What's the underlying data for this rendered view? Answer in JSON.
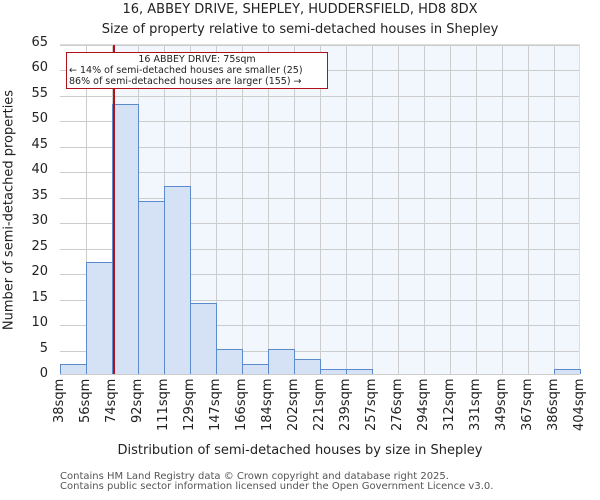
{
  "title": "16, ABBEY DRIVE, SHEPLEY, HUDDERSFIELD, HD8 8DX",
  "subtitle": "Size of property relative to semi-detached houses in Shepley",
  "annotation": {
    "line1": "16 ABBEY DRIVE: 75sqm",
    "line2": "← 14% of semi-detached houses are smaller (25)",
    "line3": "86% of semi-detached houses are larger (155) →"
  },
  "xlabel": "Distribution of semi-detached houses by size in Shepley",
  "ylabel": "Number of semi-detached properties",
  "footer": {
    "line1": "Contains HM Land Registry data © Crown copyright and database right 2025.",
    "line2": "Contains public sector information licensed under the Open Government Licence v3.0."
  },
  "colors": {
    "bar_fill": "#d5e1f4",
    "bar_edge": "#5b8bcc",
    "marker": "#b0101a",
    "shade": "#f2f6fd",
    "grid": "#cccccc"
  },
  "chart_data": {
    "type": "bar",
    "title": "16, ABBEY DRIVE, SHEPLEY, HUDDERSFIELD, HD8 8DX",
    "subtitle": "Size of property relative to semi-detached houses in Shepley",
    "xlabel": "Distribution of semi-detached houses by size in Shepley",
    "ylabel": "Number of semi-detached properties",
    "categories": [
      "38sqm",
      "56sqm",
      "74sqm",
      "92sqm",
      "111sqm",
      "129sqm",
      "147sqm",
      "166sqm",
      "184sqm",
      "202sqm",
      "221sqm",
      "239sqm",
      "257sqm",
      "276sqm",
      "294sqm",
      "312sqm",
      "331sqm",
      "349sqm",
      "367sqm",
      "386sqm",
      "404sqm"
    ],
    "bin_edges": [
      38,
      56,
      74,
      92,
      111,
      129,
      147,
      166,
      184,
      202,
      221,
      239,
      257,
      276,
      294,
      312,
      331,
      349,
      367,
      386,
      404
    ],
    "values": [
      2,
      22,
      53,
      34,
      37,
      14,
      5,
      2,
      5,
      3,
      1,
      1,
      0,
      0,
      0,
      0,
      0,
      0,
      0,
      1
    ],
    "yticks": [
      0,
      5,
      10,
      15,
      20,
      25,
      30,
      35,
      40,
      45,
      50,
      55,
      60,
      65
    ],
    "ylim": [
      0,
      65
    ],
    "grid": true,
    "marker": {
      "value": 75,
      "label": "16 ABBEY DRIVE: 75sqm"
    },
    "annotations": [
      "16 ABBEY DRIVE: 75sqm",
      "← 14% of semi-detached houses are smaller (25)",
      "86% of semi-detached houses are larger (155) →"
    ]
  }
}
